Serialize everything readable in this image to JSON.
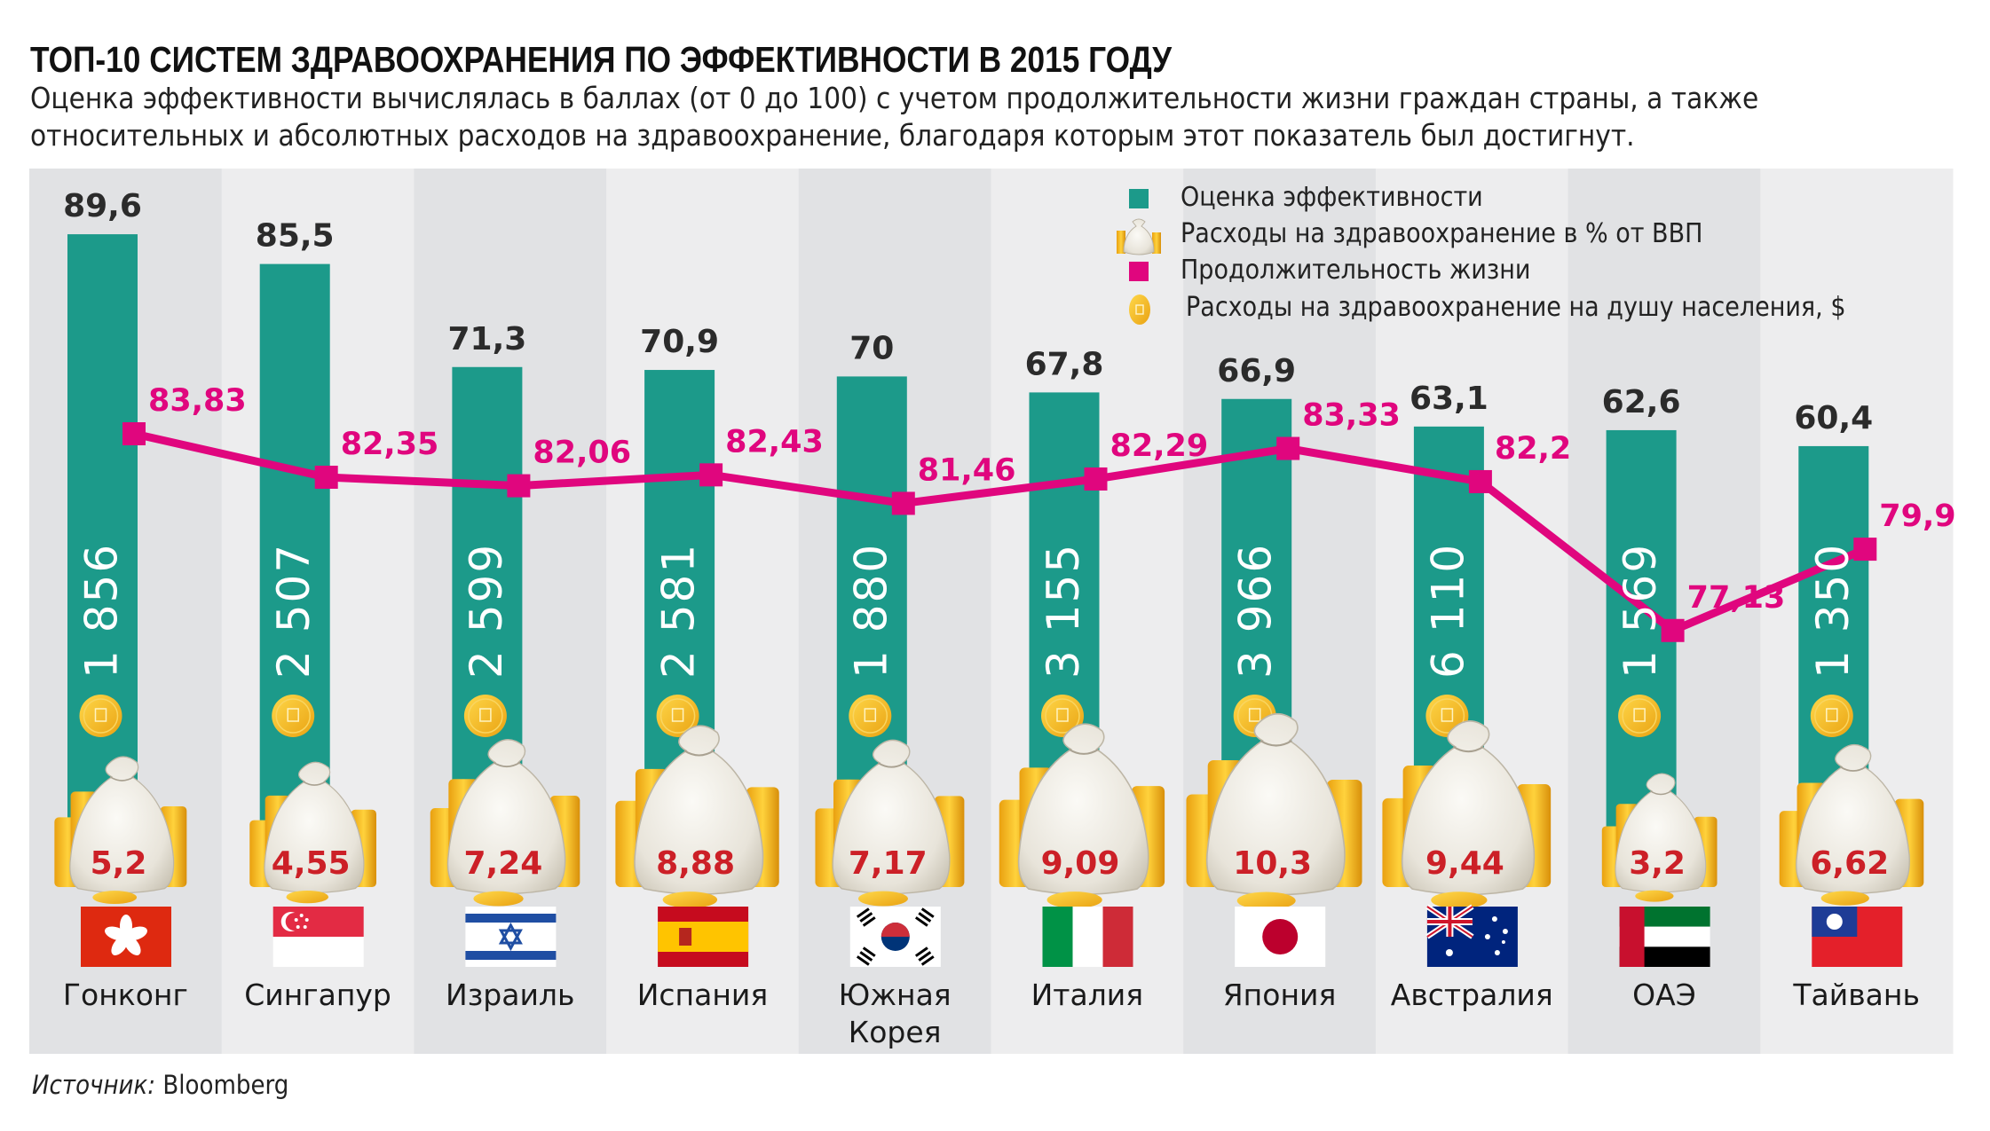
{
  "header": {
    "title": "ТОП-10 СИСТЕМ ЗДРАВООХРАНЕНИЯ ПО ЭФФЕКТИВНОСТИ В 2015 ГОДУ",
    "subtitle_line1": "Оценка эффективности вычислялась в баллах (от 0 до 100) с учетом  продолжительности жизни граждан страны, а также",
    "subtitle_line2": "относительных и абсолютных расходов на здравоохранение, благодаря которым этот показатель был достигнут."
  },
  "legend": {
    "items": [
      {
        "label": "Оценка эффективности",
        "icon": "teal-square-icon",
        "color": "#1c9a8a"
      },
      {
        "label": "Расходы на здравоохранение в % от ВВП",
        "icon": "money-bag-icon",
        "color": "#e9e4d6"
      },
      {
        "label": "Продолжительность жизни",
        "icon": "magenta-square-icon",
        "color": "#e0067e"
      },
      {
        "label": "Расходы на здравоохранение на душу населения, $",
        "icon": "gold-coin-icon",
        "color": "#f2b51d"
      }
    ]
  },
  "footer": {
    "source_label": "Источник:",
    "source_value": "Bloomberg"
  },
  "colors": {
    "bar": "#1c9a8a",
    "line": "#e0067e",
    "bag_value": "#cc2027",
    "coin": "#f2b51d",
    "col_dark": "#e1e2e4",
    "col_light": "#ededee"
  },
  "chart_data": {
    "type": "bar",
    "title": "ТОП-10 СИСТЕМ ЗДРАВООХРАНЕНИЯ ПО ЭФФЕКТИВНОСТИ В 2015 ГОДУ",
    "categories": [
      {
        "name": "Гонконг",
        "flag": "hong-kong"
      },
      {
        "name": "Сингапур",
        "flag": "singapore"
      },
      {
        "name": "Израиль",
        "flag": "israel"
      },
      {
        "name": "Испания",
        "flag": "spain"
      },
      {
        "name": "Южная Корея",
        "name_lines": [
          "Южная",
          "Корея"
        ],
        "flag": "south-korea"
      },
      {
        "name": "Италия",
        "flag": "italy"
      },
      {
        "name": "Япония",
        "flag": "japan"
      },
      {
        "name": "Австралия",
        "flag": "australia"
      },
      {
        "name": "ОАЭ",
        "flag": "uae"
      },
      {
        "name": "Тайвань",
        "flag": "taiwan"
      }
    ],
    "series": [
      {
        "name": "Оценка эффективности",
        "type": "bar",
        "values": [
          89.6,
          85.5,
          71.3,
          70.9,
          70,
          67.8,
          66.9,
          63.1,
          62.6,
          60.4
        ],
        "labels": [
          "89,6",
          "85,5",
          "71,3",
          "70,9",
          "70",
          "67,8",
          "66,9",
          "63,1",
          "62,6",
          "60,4"
        ]
      },
      {
        "name": "Продолжительность жизни",
        "type": "line",
        "values": [
          83.83,
          82.35,
          82.06,
          82.43,
          81.46,
          82.29,
          83.33,
          82.2,
          77.13,
          79.9
        ],
        "labels": [
          "83,83",
          "82,35",
          "82,06",
          "82,43",
          "81,46",
          "82,29",
          "83,33",
          "82,2",
          "77,13",
          "79,9"
        ]
      },
      {
        "name": "Расходы на здравоохранение в % от ВВП",
        "type": "icon-scaled",
        "values": [
          5.2,
          4.55,
          7.24,
          8.88,
          7.17,
          9.09,
          10.3,
          9.44,
          3.2,
          6.62
        ],
        "labels": [
          "5,2",
          "4,55",
          "7,24",
          "8,88",
          "7,17",
          "9,09",
          "10,3",
          "9,44",
          "3,2",
          "6,62"
        ]
      },
      {
        "name": "Расходы на здравоохранение на душу населения, $",
        "type": "text",
        "values": [
          1856,
          2507,
          2599,
          2581,
          1880,
          3155,
          3966,
          6110,
          1569,
          1350
        ],
        "labels": [
          "1 856",
          "2 507",
          "2 599",
          "2 581",
          "1 880",
          "3 155",
          "3 966",
          "6 110",
          "1 569",
          "1 350"
        ]
      }
    ],
    "ylim": [
      0,
      100
    ],
    "grid": false,
    "legend_position": "top-right"
  }
}
